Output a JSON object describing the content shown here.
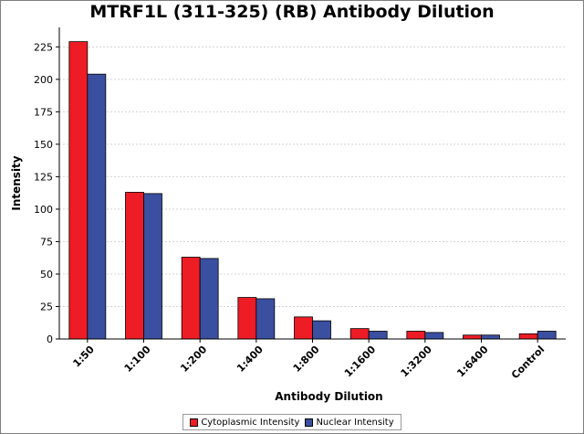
{
  "chart_data": {
    "type": "bar",
    "title": "MTRF1L (311-325) (RB) Antibody Dilution",
    "xlabel": "Antibody Dilution",
    "ylabel": "Intensity",
    "ylim": [
      0,
      240
    ],
    "yticks": [
      0,
      25,
      50,
      75,
      100,
      125,
      150,
      175,
      200,
      225
    ],
    "grid": true,
    "legend_position": "bottom",
    "categories": [
      "1:50",
      "1:100",
      "1:200",
      "1:400",
      "1:800",
      "1:1600",
      "1:3200",
      "1:6400",
      "Control"
    ],
    "series": [
      {
        "name": "Cytoplasmic Intensity",
        "color": "#ee1c25",
        "values": [
          229,
          113,
          63,
          32,
          17,
          8,
          6,
          3,
          4
        ]
      },
      {
        "name": "Nuclear Intensity",
        "color": "#3b4fa0",
        "values": [
          204,
          112,
          62,
          31,
          14,
          6,
          5,
          3,
          6
        ]
      }
    ]
  }
}
